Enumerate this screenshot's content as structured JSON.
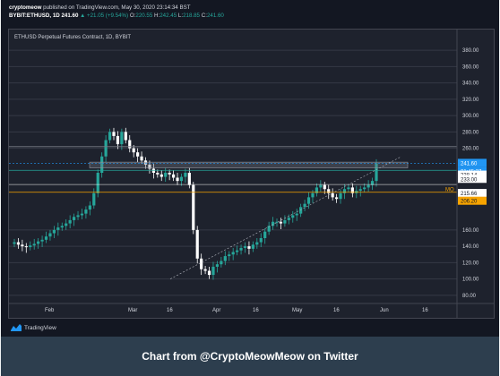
{
  "header": {
    "line1_user": "cryptomeow",
    "line1_rest": " published on TradingView.com, May 30, 2020 23:14:34 BST",
    "line2_symbol": "BYBIT:ETHUSD, 1D",
    "line2_price": "241.60",
    "line2_change": "▲ +21.05 (+9.54%)",
    "ohlc": [
      {
        "label": "O:",
        "value": "220.55"
      },
      {
        "label": "H:",
        "value": "242.45"
      },
      {
        "label": "L:",
        "value": "218.85"
      },
      {
        "label": "C:",
        "value": "241.60"
      }
    ]
  },
  "chart": {
    "title": "ETHUSD Perpetual Futures Contract, 1D, BYBIT",
    "x_tick_labels": [
      "Feb",
      "Mar",
      "16",
      "Apr",
      "16",
      "May",
      "16",
      "Jun",
      "16"
    ],
    "y_tick_labels": [
      "380.00",
      "360.00",
      "340.00",
      "320.00",
      "300.00",
      "280.00",
      "260.00",
      "160.00",
      "140.00",
      "120.00",
      "100.00",
      "80.00"
    ],
    "price_tags": [
      {
        "text": "241.60",
        "bg": "#2196f3",
        "fg": "#ffffff"
      },
      {
        "text": "01:45:27",
        "bg": "#2196f3",
        "fg": "#ffffff"
      },
      {
        "text": "238.14",
        "bg": "#ffffff",
        "fg": "#131722"
      },
      {
        "text": "233.00",
        "bg": "#ffffff",
        "fg": "#131722"
      },
      {
        "text": "215.66",
        "bg": "#ffffff",
        "fg": "#131722"
      },
      {
        "text": "206.20",
        "bg": "#f7a400",
        "fg": "#131722"
      }
    ],
    "mo_label": "MO",
    "colors": {
      "up": "#26a69a",
      "down": "#ffffff",
      "accent": "#2196f3",
      "mo": "#f7a400"
    }
  },
  "footer": {
    "logo_text": "TradingView",
    "caption": "Chart from @CryptoMeowMeow on Twitter"
  },
  "chart_data": {
    "type": "candlestick",
    "title": "ETHUSD Perpetual Futures Contract, 1D, BYBIT",
    "y_tick_values": [
      80,
      100,
      120,
      140,
      160,
      260,
      280,
      300,
      320,
      340,
      360,
      380
    ],
    "ylim": [
      70,
      390
    ],
    "horizontal_levels": [
      241.6,
      238.14,
      233.0,
      215.66,
      206.2,
      262
    ],
    "candles_close_approx": [
      145,
      142,
      140,
      139,
      141,
      143,
      146,
      148,
      152,
      156,
      160,
      163,
      165,
      168,
      172,
      176,
      178,
      180,
      185,
      190,
      205,
      230,
      250,
      270,
      280,
      275,
      265,
      280,
      270,
      260,
      255,
      250,
      245,
      240,
      235,
      230,
      228,
      225,
      230,
      228,
      224,
      220,
      225,
      230,
      215,
      160,
      125,
      112,
      110,
      105,
      115,
      118,
      122,
      128,
      130,
      133,
      135,
      138,
      140,
      137,
      142,
      145,
      150,
      158,
      165,
      170,
      170,
      168,
      172,
      175,
      178,
      180,
      188,
      192,
      200,
      205,
      212,
      215,
      210,
      205,
      200,
      198,
      205,
      210,
      212,
      205,
      208,
      210,
      212,
      215,
      220,
      241.6
    ]
  }
}
